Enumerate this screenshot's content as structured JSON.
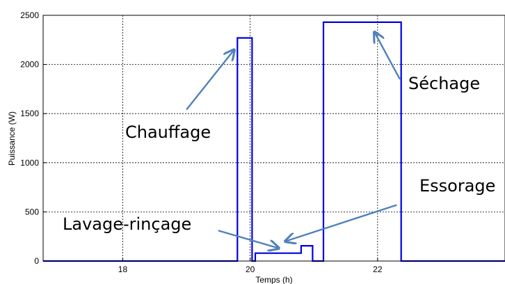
{
  "chart_data": {
    "type": "line",
    "title": "",
    "xlabel": "Temps (h)",
    "ylabel": "Puissance (W)",
    "xlim": [
      16.75,
      24
    ],
    "ylim": [
      0,
      2500
    ],
    "xticks": [
      18,
      20,
      22
    ],
    "yticks": [
      0,
      500,
      1000,
      1500,
      2000,
      2500
    ],
    "grid": true,
    "series": [
      {
        "color": "#0000e0",
        "x": [
          16.75,
          19.8,
          19.8,
          20.03,
          20.03,
          20.08,
          20.08,
          20.8,
          20.8,
          20.98,
          20.98,
          21.15,
          21.15,
          22.37,
          22.37,
          24
        ],
        "y": [
          0,
          0,
          2270,
          2270,
          0,
          0,
          80,
          80,
          155,
          155,
          0,
          0,
          2430,
          2430,
          0,
          0
        ]
      }
    ],
    "annotations": [
      {
        "text": "Chauffage",
        "target": [
          19.75,
          2150
        ],
        "from": [
          19.0,
          1540
        ]
      },
      {
        "text": "Séchage",
        "target": [
          21.95,
          2330
        ],
        "from": [
          22.35,
          1850
        ]
      },
      {
        "text": "Essorage",
        "target": [
          20.55,
          200
        ],
        "from": [
          22.3,
          570
        ]
      },
      {
        "text": "Lavage-rinçage",
        "target": [
          20.45,
          130
        ],
        "from": [
          19.5,
          310
        ]
      }
    ]
  }
}
